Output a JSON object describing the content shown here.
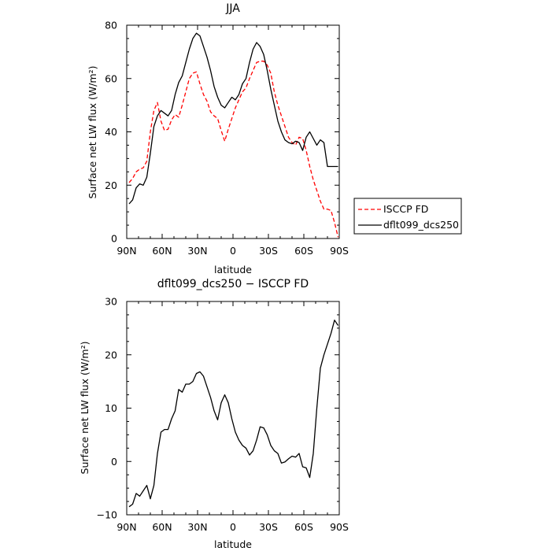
{
  "chart_data": [
    {
      "type": "line",
      "title": "JJA",
      "xlabel": "latitude",
      "ylabel": "Surface net LW flux (W/m²)",
      "xlim": [
        90,
        -90
      ],
      "ylim": [
        0,
        80
      ],
      "x_ticks": [
        {
          "value": 90,
          "label": "90N"
        },
        {
          "value": 60,
          "label": "60N"
        },
        {
          "value": 30,
          "label": "30N"
        },
        {
          "value": 0,
          "label": "0"
        },
        {
          "value": -30,
          "label": "30S"
        },
        {
          "value": -60,
          "label": "60S"
        },
        {
          "value": -90,
          "label": "90S"
        }
      ],
      "y_ticks": [
        0,
        20,
        40,
        60,
        80
      ],
      "legend": "right",
      "series": [
        {
          "name": "ISCCP FD",
          "color": "#ff0000",
          "dashed": true,
          "x": [
            88,
            85,
            82,
            79,
            76,
            73,
            70,
            67,
            64,
            61,
            58,
            55,
            52,
            49,
            46,
            43,
            40,
            37,
            34,
            31,
            28,
            25,
            22,
            19,
            16,
            13,
            10,
            7,
            4,
            1,
            -2,
            -5,
            -8,
            -11,
            -14,
            -17,
            -20,
            -23,
            -26,
            -29,
            -32,
            -35,
            -38,
            -41,
            -44,
            -47,
            -50,
            -53,
            -56,
            -59,
            -62,
            -65,
            -68,
            -71,
            -74,
            -77,
            -80,
            -83,
            -86,
            -89
          ],
          "y": [
            21,
            22.5,
            25,
            26,
            26.5,
            29,
            40,
            48,
            51,
            44,
            40.5,
            41,
            44.5,
            46.5,
            45.5,
            50,
            55,
            60,
            62,
            62.5,
            58,
            54,
            51.5,
            47.5,
            46,
            45,
            40.5,
            36.5,
            41,
            45,
            49,
            52,
            55,
            56.5,
            60,
            63,
            66,
            66.5,
            66.5,
            65,
            62,
            55,
            50,
            46,
            42,
            38,
            36,
            35,
            38,
            37.5,
            33,
            27,
            22,
            18,
            14,
            11,
            11,
            10.5,
            6,
            0.5
          ]
        },
        {
          "name": "dflt099_dcs250",
          "color": "#000000",
          "dashed": false,
          "x": [
            88,
            85,
            82,
            79,
            76,
            73,
            70,
            67,
            64,
            61,
            58,
            55,
            52,
            49,
            46,
            43,
            40,
            37,
            34,
            31,
            28,
            25,
            22,
            19,
            16,
            13,
            10,
            7,
            4,
            1,
            -2,
            -5,
            -8,
            -11,
            -14,
            -17,
            -20,
            -23,
            -26,
            -29,
            -32,
            -35,
            -38,
            -41,
            -44,
            -47,
            -50,
            -53,
            -56,
            -59,
            -62,
            -65,
            -68,
            -71,
            -74,
            -77,
            -80,
            -83,
            -86,
            -89
          ],
          "y": [
            13,
            14.5,
            19,
            20.5,
            20,
            23,
            32,
            42,
            46,
            48,
            47,
            46,
            48,
            54,
            58.5,
            61,
            66,
            71,
            75,
            77,
            76,
            72,
            68,
            63,
            57,
            53,
            50,
            49,
            51,
            53,
            52,
            54,
            58,
            60,
            66,
            71,
            73.5,
            72,
            69,
            63,
            56,
            50,
            44,
            40,
            37,
            36,
            35.5,
            36.5,
            36,
            33,
            38,
            40,
            37.5,
            35,
            37,
            36,
            27,
            27,
            27,
            27
          ]
        }
      ]
    },
    {
      "type": "line",
      "title": "dflt099_dcs250 − ISCCP FD",
      "xlabel": "latitude",
      "ylabel": "Surface net LW flux (W/m²)",
      "xlim": [
        90,
        -90
      ],
      "ylim": [
        -10,
        30
      ],
      "x_ticks": [
        {
          "value": 90,
          "label": "90N"
        },
        {
          "value": 60,
          "label": "60N"
        },
        {
          "value": 30,
          "label": "30N"
        },
        {
          "value": 0,
          "label": "0"
        },
        {
          "value": -30,
          "label": "30S"
        },
        {
          "value": -60,
          "label": "60S"
        },
        {
          "value": -90,
          "label": "90S"
        }
      ],
      "y_ticks": [
        -10,
        0,
        10,
        20,
        30
      ],
      "series": [
        {
          "color": "#000000",
          "x": [
            88,
            85,
            82,
            79,
            76,
            73,
            70,
            67,
            64,
            61,
            58,
            55,
            52,
            49,
            46,
            43,
            40,
            37,
            34,
            31,
            28,
            25,
            22,
            19,
            16,
            13,
            10,
            7,
            4,
            1,
            -2,
            -5,
            -8,
            -11,
            -14,
            -17,
            -20,
            -23,
            -26,
            -29,
            -32,
            -35,
            -38,
            -41,
            -44,
            -47,
            -50,
            -53,
            -56,
            -59,
            -62,
            -65,
            -68,
            -71,
            -74,
            -77,
            -80,
            -83,
            -86,
            -89
          ],
          "y": [
            -8.5,
            -8,
            -6,
            -6.5,
            -5.5,
            -4.5,
            -7,
            -4.5,
            1.5,
            5.5,
            6,
            6,
            8,
            9.5,
            13.5,
            13,
            14.5,
            14.5,
            15,
            16.5,
            16.8,
            16,
            14,
            12,
            9.5,
            7.8,
            11,
            12.5,
            11,
            8,
            5.5,
            4,
            3,
            2.5,
            1.2,
            2,
            4,
            6.5,
            6.3,
            5,
            3,
            2,
            1.5,
            -0.3,
            -0.1,
            0.5,
            1,
            0.8,
            1.5,
            -1,
            -1.2,
            -3,
            1.5,
            10,
            17.5,
            20,
            22,
            24,
            26.5,
            25.5
          ]
        }
      ]
    }
  ]
}
